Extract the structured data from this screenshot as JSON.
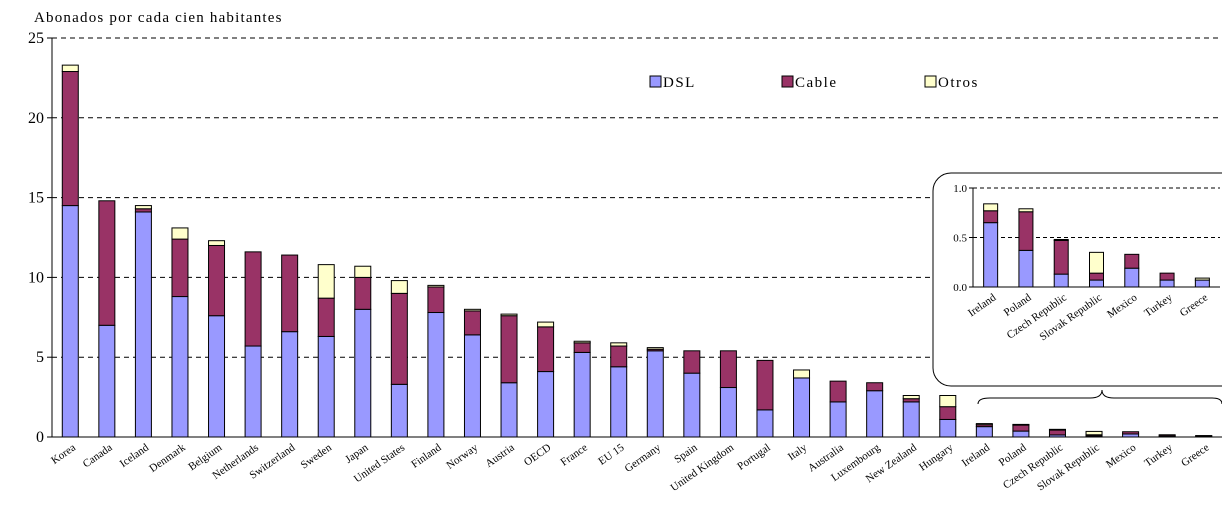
{
  "chart_data": {
    "type": "bar",
    "stacked": true,
    "ylabel": "Abonados por cada cien habitantes",
    "ylim": [
      0,
      25
    ],
    "yticks": [
      0,
      5,
      10,
      15,
      20,
      25
    ],
    "grid": "horizontal dashed",
    "legend_position": "top-right",
    "colors": {
      "DSL": "#9999ff",
      "Cable": "#993366",
      "Otros": "#ffffcc",
      "outline": "#000000"
    },
    "categories": [
      "Korea",
      "Canada",
      "Iceland",
      "Denmark",
      "Belgium",
      "Netherlands",
      "Switzerland",
      "Sweden",
      "Japan",
      "United States",
      "Finland",
      "Norway",
      "Austria",
      "OECD",
      "France",
      "EU 15",
      "Germany",
      "Spain",
      "United Kingdom",
      "Portugal",
      "Italy",
      "Australia",
      "Luxembourg",
      "New Zealand",
      "Hungary",
      "Ireland",
      "Poland",
      "Czech Republic",
      "Slovak Republic",
      "Mexico",
      "Turkey",
      "Greece"
    ],
    "series": [
      {
        "name": "DSL",
        "values": [
          14.5,
          7.0,
          14.1,
          8.8,
          7.6,
          5.7,
          6.6,
          6.3,
          8.0,
          3.3,
          7.8,
          6.4,
          3.4,
          4.1,
          5.3,
          4.4,
          5.4,
          4.0,
          3.1,
          1.7,
          3.7,
          2.2,
          2.9,
          2.2,
          1.1,
          0.65,
          0.37,
          0.13,
          0.07,
          0.19,
          0.07,
          0.07
        ]
      },
      {
        "name": "Cable",
        "values": [
          8.4,
          7.8,
          0.2,
          3.6,
          4.4,
          5.9,
          4.8,
          2.4,
          2.0,
          5.7,
          1.6,
          1.5,
          4.2,
          2.8,
          0.6,
          1.3,
          0.1,
          1.4,
          2.3,
          3.1,
          0.0,
          1.3,
          0.5,
          0.2,
          0.8,
          0.12,
          0.39,
          0.34,
          0.07,
          0.14,
          0.07,
          0.0
        ]
      },
      {
        "name": "Otros",
        "values": [
          0.4,
          0.0,
          0.2,
          0.7,
          0.3,
          0.0,
          0.0,
          2.1,
          0.7,
          0.8,
          0.1,
          0.1,
          0.1,
          0.3,
          0.1,
          0.2,
          0.1,
          0.0,
          0.0,
          0.0,
          0.5,
          0.0,
          0.0,
          0.2,
          0.7,
          0.07,
          0.03,
          0.01,
          0.21,
          0.0,
          0.0,
          0.02
        ]
      }
    ],
    "inset": {
      "type": "bar",
      "stacked": true,
      "ylim": [
        0,
        1.0
      ],
      "yticks": [
        "0.0",
        "0.5",
        "1.0"
      ],
      "categories": [
        "Ireland",
        "Poland",
        "Czech Republic",
        "Slovak Republic",
        "Mexico",
        "Turkey",
        "Greece"
      ]
    }
  }
}
